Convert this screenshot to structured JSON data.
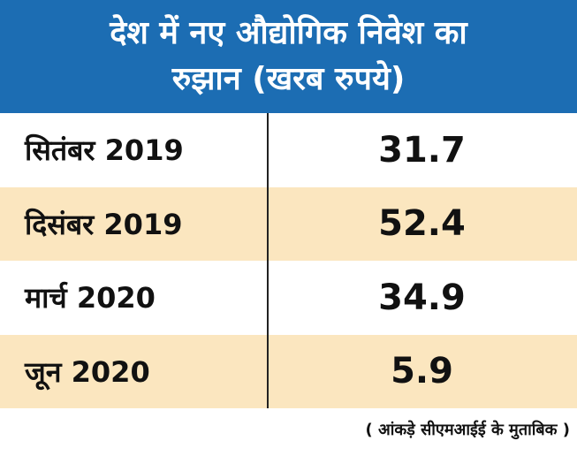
{
  "header": {
    "title_lines": [
      "देश में नए औद्योगिक निवेश का",
      "रुझान (खरब रुपये)"
    ]
  },
  "table": {
    "rows": [
      [
        "सितंबर 2019",
        "31.7"
      ],
      [
        "दिसंबर 2019",
        "52.4"
      ],
      [
        "मार्च 2020",
        "34.9"
      ],
      [
        "जून 2020",
        "5.9"
      ]
    ]
  },
  "footer": {
    "source": "( आंकड़े सीएमआईई के मुताबिक )"
  }
}
